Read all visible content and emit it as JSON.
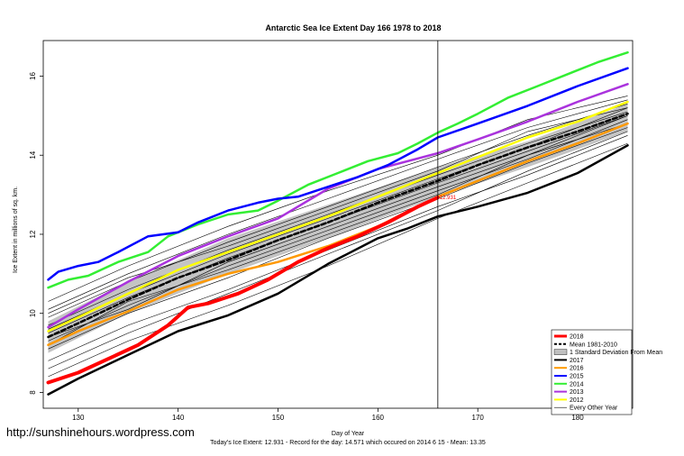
{
  "watermark": "http://sunshinehours.wordpress.com",
  "chart_data": {
    "type": "line",
    "title": "Antarctic Sea Ice Extent Day 166 1978 to 2018",
    "xlabel": "Day of Year",
    "ylabel": "Ice Extent in millions of sq. km.",
    "caption": "Today's Ice Extent: 12.931  - Record for the day: 14.571 which occured on 2014 6 15  - Mean: 13.35",
    "xlim": [
      126.5,
      185.5
    ],
    "ylim": [
      7.6,
      16.9
    ],
    "xticks": [
      130,
      140,
      150,
      160,
      170,
      180
    ],
    "yticks": [
      8,
      10,
      12,
      14,
      16
    ],
    "current_day": 166,
    "annotation": {
      "x": 166,
      "y": 12.931,
      "text": "12.931",
      "color": "#ff0000"
    },
    "legend_position": "bottom-right",
    "band": {
      "name": "1 Standard Deviation From Mean",
      "x": [
        127,
        135,
        145,
        155,
        166,
        175,
        185
      ],
      "lower": [
        9.0,
        10.0,
        11.0,
        11.9,
        12.95,
        13.7,
        14.6
      ],
      "upper": [
        9.8,
        10.8,
        11.9,
        12.75,
        13.7,
        14.35,
        15.3
      ]
    },
    "series": [
      {
        "name": "Mean 1981-2010",
        "color": "#000000",
        "dashed": true,
        "width": 2.5,
        "x": [
          127,
          130,
          135,
          140,
          145,
          150,
          155,
          160,
          166,
          170,
          175,
          180,
          185
        ],
        "y": [
          9.4,
          9.75,
          10.35,
          10.9,
          11.35,
          11.85,
          12.3,
          12.8,
          13.35,
          13.75,
          14.2,
          14.6,
          15.05
        ]
      },
      {
        "name": "2018",
        "color": "#ff0000",
        "width": 4,
        "x": [
          127,
          130,
          133,
          136,
          139,
          141,
          143,
          146,
          149,
          152,
          155,
          158,
          161,
          164,
          166
        ],
        "y": [
          8.25,
          8.5,
          8.85,
          9.2,
          9.7,
          10.15,
          10.25,
          10.5,
          10.85,
          11.3,
          11.65,
          11.95,
          12.3,
          12.7,
          12.93
        ]
      },
      {
        "name": "2017",
        "color": "#000000",
        "width": 2.5,
        "x": [
          127,
          130,
          135,
          140,
          145,
          150,
          155,
          160,
          163,
          166,
          170,
          175,
          180,
          185
        ],
        "y": [
          7.95,
          8.35,
          8.95,
          9.55,
          9.95,
          10.5,
          11.25,
          11.9,
          12.15,
          12.45,
          12.7,
          13.05,
          13.55,
          14.25
        ]
      },
      {
        "name": "2016",
        "color": "#ff9900",
        "width": 2.5,
        "x": [
          127,
          130,
          135,
          140,
          145,
          150,
          155,
          160,
          166,
          170,
          175,
          180,
          185
        ],
        "y": [
          9.2,
          9.55,
          10.05,
          10.6,
          11.0,
          11.3,
          11.7,
          12.2,
          12.95,
          13.35,
          13.85,
          14.3,
          14.8
        ]
      },
      {
        "name": "2015",
        "color": "#0000ff",
        "width": 2.5,
        "x": [
          127,
          128,
          130,
          132,
          134,
          137,
          140,
          142,
          145,
          148,
          150,
          152,
          155,
          158,
          161,
          164,
          166,
          170,
          175,
          180,
          185
        ],
        "y": [
          10.85,
          11.05,
          11.2,
          11.3,
          11.55,
          11.95,
          12.05,
          12.3,
          12.6,
          12.8,
          12.9,
          12.95,
          13.2,
          13.45,
          13.75,
          14.15,
          14.45,
          14.8,
          15.25,
          15.75,
          16.2
        ]
      },
      {
        "name": "2014",
        "color": "#33ee33",
        "width": 2.5,
        "x": [
          127,
          129,
          131,
          134,
          137,
          139,
          142,
          145,
          148,
          150,
          153,
          156,
          159,
          162,
          164,
          166,
          168,
          170,
          173,
          176,
          179,
          182,
          185
        ],
        "y": [
          10.65,
          10.85,
          10.95,
          11.3,
          11.55,
          11.95,
          12.25,
          12.5,
          12.6,
          12.85,
          13.25,
          13.55,
          13.85,
          14.05,
          14.3,
          14.57,
          14.8,
          15.05,
          15.45,
          15.75,
          16.05,
          16.35,
          16.6
        ]
      },
      {
        "name": "2013",
        "color": "#aa33dd",
        "width": 2.5,
        "x": [
          127,
          130,
          135,
          140,
          145,
          150,
          155,
          160,
          166,
          170,
          175,
          180,
          185
        ],
        "y": [
          9.65,
          10.1,
          10.8,
          11.45,
          11.95,
          12.4,
          13.15,
          13.65,
          14.05,
          14.4,
          14.85,
          15.35,
          15.8
        ]
      },
      {
        "name": "2012",
        "color": "#ffff00",
        "width": 2.5,
        "x": [
          127,
          130,
          135,
          140,
          145,
          150,
          155,
          160,
          166,
          170,
          175,
          180,
          185
        ],
        "y": [
          9.55,
          9.9,
          10.5,
          11.1,
          11.55,
          12.0,
          12.45,
          12.95,
          13.55,
          13.95,
          14.45,
          14.85,
          15.35
        ]
      }
    ],
    "other_years": {
      "name": "Every Other Year",
      "color": "#000000",
      "x": [
        127,
        135,
        145,
        155,
        166,
        175,
        185
      ],
      "lines": [
        [
          8.4,
          9.3,
          10.2,
          11.2,
          12.4,
          13.3,
          14.3
        ],
        [
          8.8,
          9.7,
          10.6,
          11.6,
          12.7,
          13.5,
          14.5
        ],
        [
          9.1,
          10.0,
          10.9,
          11.9,
          12.9,
          13.8,
          14.7
        ],
        [
          9.3,
          10.2,
          11.2,
          12.1,
          13.1,
          13.9,
          14.9
        ],
        [
          9.5,
          10.4,
          11.4,
          12.3,
          13.3,
          14.1,
          15.0
        ],
        [
          9.7,
          10.6,
          11.6,
          12.5,
          13.5,
          14.3,
          15.1
        ],
        [
          9.9,
          10.8,
          11.8,
          12.7,
          13.7,
          14.5,
          15.3
        ],
        [
          10.1,
          11.0,
          12.0,
          12.9,
          13.9,
          14.7,
          15.4
        ],
        [
          10.3,
          11.2,
          12.2,
          13.1,
          14.0,
          14.9,
          15.5
        ],
        [
          8.6,
          9.5,
          10.5,
          11.5,
          12.6,
          13.6,
          14.6
        ],
        [
          9.2,
          10.3,
          11.1,
          12.0,
          13.0,
          14.0,
          14.8
        ],
        [
          9.6,
          10.5,
          11.5,
          12.4,
          13.4,
          14.2,
          15.2
        ],
        [
          10.0,
          10.9,
          11.7,
          12.6,
          13.6,
          14.6,
          15.2
        ],
        [
          9.4,
          10.1,
          11.3,
          12.2,
          13.2,
          14.0,
          15.0
        ]
      ]
    },
    "legend": [
      {
        "label": "2018",
        "color": "#ff0000",
        "kind": "line",
        "width": 3
      },
      {
        "label": "Mean 1981-2010",
        "color": "#000000",
        "kind": "dash",
        "width": 2
      },
      {
        "label": "1 Standard Deviation From Mean",
        "color": "#bfbfbf",
        "kind": "box",
        "width": 6
      },
      {
        "label": "2017",
        "color": "#000000",
        "kind": "line",
        "width": 2
      },
      {
        "label": "2016",
        "color": "#ff9900",
        "kind": "line",
        "width": 2
      },
      {
        "label": "2015",
        "color": "#0000ff",
        "kind": "line",
        "width": 2
      },
      {
        "label": "2014",
        "color": "#33ee33",
        "kind": "line",
        "width": 2
      },
      {
        "label": "2013",
        "color": "#aa33dd",
        "kind": "line",
        "width": 2
      },
      {
        "label": "2012",
        "color": "#ffff00",
        "kind": "line",
        "width": 2
      },
      {
        "label": "Every Other Year",
        "color": "#000000",
        "kind": "line",
        "width": 0.6
      }
    ]
  }
}
